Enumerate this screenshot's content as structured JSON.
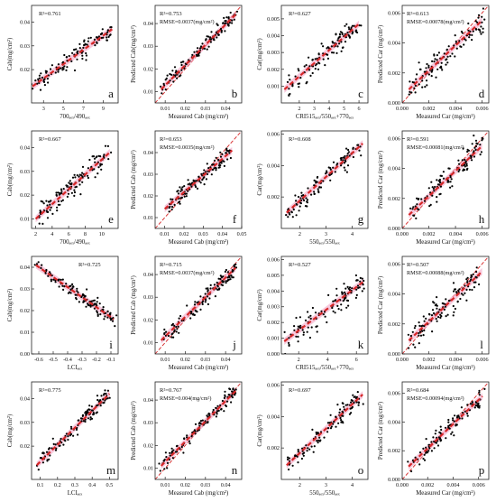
{
  "chart_data": [
    {
      "type": "scatter",
      "letter": "a",
      "xlabel": "700ₐₑₓ/490ₐₑₓ",
      "ylabel": "Cab(mg/cm²)",
      "stat1": "R²=0.761",
      "stat2": "",
      "xlim": [
        1.8,
        10.5
      ],
      "ylim": [
        0.006,
        0.047
      ],
      "xticks": [
        3,
        5,
        7,
        9
      ],
      "xticklabels": [
        "3",
        "5",
        "7",
        "9"
      ],
      "yticks": [
        0.02,
        0.03,
        0.04
      ],
      "yticklabels": [
        "0.02",
        "0.03",
        "0.04"
      ],
      "fit": [
        [
          1.9,
          0.013
        ],
        [
          9.9,
          0.037
        ]
      ],
      "one_to_one": false,
      "n": 120,
      "noise": 0.0035,
      "seed": 11
    },
    {
      "type": "scatter",
      "letter": "b",
      "xlabel": "Measured Cab (mg/cm²)",
      "ylabel": "Predicted Cab(mg/cm²)",
      "stat1": "R²=0.753",
      "stat2": "RMSE=0.0037(mg/cm²)",
      "xlim": [
        0.005,
        0.048
      ],
      "ylim": [
        0.005,
        0.048
      ],
      "xticks": [
        0.01,
        0.02,
        0.03,
        0.04
      ],
      "xticklabels": [
        "0.01",
        "0.02",
        "0.03",
        "0.04"
      ],
      "yticks": [
        0.01,
        0.02,
        0.03,
        0.04
      ],
      "yticklabels": [
        "0.01",
        "0.02",
        "0.03",
        "0.04"
      ],
      "fit": [
        [
          0.008,
          0.011
        ],
        [
          0.045,
          0.044
        ]
      ],
      "one_to_one": true,
      "n": 120,
      "noise": 0.0032,
      "seed": 12
    },
    {
      "type": "scatter",
      "letter": "c",
      "xlabel": "CRI515ₐₑₓ/550ₐₑₓ+770ₐₑₓ",
      "ylabel": "Car(mg/cm²)",
      "stat1": "R²=0.627",
      "stat2": "",
      "xlim": [
        0.8,
        6.6
      ],
      "ylim": [
        0,
        0.0058
      ],
      "xticks": [
        2,
        3,
        4,
        5,
        6
      ],
      "xticklabels": [
        "2",
        "3",
        "4",
        "5",
        "6"
      ],
      "yticks": [
        0.001,
        0.002,
        0.003,
        0.004,
        0.005
      ],
      "yticklabels": [
        "0.001",
        "0.002",
        "0.003",
        "0.004",
        "0.005"
      ],
      "fit": [
        [
          1,
          0.0008
        ],
        [
          6,
          0.0047
        ]
      ],
      "one_to_one": false,
      "n": 110,
      "noise": 0.00065,
      "seed": 13
    },
    {
      "type": "scatter",
      "letter": "d",
      "xlabel": "Measured Car (mg/cm²)",
      "ylabel": "Predicted Car (mg/cm²)",
      "stat1": "R²=0.613",
      "stat2": "RMSE=0.00078(mg/cm²)",
      "xlim": [
        0,
        0.0065
      ],
      "ylim": [
        0,
        0.0065
      ],
      "xticks": [
        0,
        0.002,
        0.004,
        0.006
      ],
      "xticklabels": [
        "0.000",
        "0.002",
        "0.004",
        "0.006"
      ],
      "yticks": [
        0,
        0.002,
        0.004,
        0.006
      ],
      "yticklabels": [
        "0.000",
        "0.002",
        "0.004",
        "0.006"
      ],
      "fit": [
        [
          0.0005,
          0.0009
        ],
        [
          0.006,
          0.0055
        ]
      ],
      "one_to_one": true,
      "n": 110,
      "noise": 0.0007,
      "seed": 14
    },
    {
      "type": "scatter",
      "letter": "e",
      "xlabel": "700ₐₑₓ/490ₐₑₓ",
      "ylabel": "Cab(mg/cm²)",
      "stat1": "R²=0.667",
      "stat2": "",
      "xlim": [
        1.5,
        12
      ],
      "ylim": [
        0.006,
        0.047
      ],
      "xticks": [
        2,
        4,
        6,
        8,
        10
      ],
      "xticklabels": [
        "2",
        "4",
        "6",
        "8",
        "10"
      ],
      "yticks": [
        0.01,
        0.02,
        0.03,
        0.04
      ],
      "yticklabels": [
        "0.01",
        "0.02",
        "0.03",
        "0.04"
      ],
      "fit": [
        [
          2,
          0.01
        ],
        [
          11,
          0.038
        ]
      ],
      "one_to_one": false,
      "n": 120,
      "noise": 0.0045,
      "seed": 21
    },
    {
      "type": "scatter",
      "letter": "f",
      "xlabel": "Measured Cab (mg/cm²)",
      "ylabel": "Predicted Cab (mg/cm²)",
      "stat1": "R²=0.653",
      "stat2": "RMSE=0.0035(mg/cm²)",
      "xlim": [
        0.005,
        0.05
      ],
      "ylim": [
        0.005,
        0.05
      ],
      "xticks": [
        0.01,
        0.02,
        0.03,
        0.04,
        0.05
      ],
      "xticklabels": [
        "0.01",
        "0.02",
        "0.03",
        "0.04",
        "0.05"
      ],
      "yticks": [
        0.01,
        0.02,
        0.03,
        0.04
      ],
      "yticklabels": [
        "0.01",
        "0.02",
        "0.03",
        "0.04"
      ],
      "fit": [
        [
          0.01,
          0.014
        ],
        [
          0.045,
          0.041
        ]
      ],
      "one_to_one": true,
      "n": 120,
      "noise": 0.0035,
      "seed": 22
    },
    {
      "type": "scatter",
      "letter": "g",
      "xlabel": "550ₐₑₓ/550ₐₑₓ",
      "ylabel": "Car(mg/cm²)",
      "stat1": "R²=0.608",
      "stat2": "",
      "xlim": [
        1.3,
        4.6
      ],
      "ylim": [
        0,
        0.0062
      ],
      "xticks": [
        2,
        3,
        4
      ],
      "xticklabels": [
        "2",
        "3",
        "4"
      ],
      "yticks": [
        0.002,
        0.004,
        0.006
      ],
      "yticklabels": [
        "0.002",
        "0.004",
        "0.006"
      ],
      "fit": [
        [
          1.5,
          0.001
        ],
        [
          4.4,
          0.0054
        ]
      ],
      "one_to_one": false,
      "n": 110,
      "noise": 0.0007,
      "seed": 23
    },
    {
      "type": "scatter",
      "letter": "h",
      "xlabel": "Measured Car (mg/cm²)",
      "ylabel": "Predicted Car (mg/cm²)",
      "stat1": "R²=0.591",
      "stat2": "RMSE=0.00081(mg/cm²)",
      "xlim": [
        0,
        0.0065
      ],
      "ylim": [
        0,
        0.0065
      ],
      "xticks": [
        0,
        0.002,
        0.004,
        0.006
      ],
      "xticklabels": [
        "0.000",
        "0.002",
        "0.004",
        "0.006"
      ],
      "yticks": [
        0,
        0.002,
        0.004,
        0.006
      ],
      "yticklabels": [
        "0.000",
        "0.002",
        "0.004",
        "0.006"
      ],
      "fit": [
        [
          0.0005,
          0.0009
        ],
        [
          0.006,
          0.0055
        ]
      ],
      "one_to_one": true,
      "n": 110,
      "noise": 0.00075,
      "seed": 24
    },
    {
      "type": "scatter",
      "letter": "i",
      "xlabel": "LCIₐₑₓ",
      "ylabel": "Cab(mg/cm²)",
      "stat1": "R²=0.725",
      "stat2": "",
      "xlim": [
        -0.65,
        -0.05
      ],
      "ylim": [
        0,
        0.045
      ],
      "xticks": [
        -0.6,
        -0.5,
        -0.4,
        -0.3,
        -0.2,
        -0.1
      ],
      "xticklabels": [
        "-0.6",
        "-0.5",
        "-0.4",
        "-0.3",
        "-0.2",
        "-0.1"
      ],
      "yticks": [
        0,
        0.01,
        0.02,
        0.03,
        0.04
      ],
      "yticklabels": [
        "0.00",
        "0.01",
        "0.02",
        "0.03",
        "0.04"
      ],
      "fit": [
        [
          -0.62,
          0.041
        ],
        [
          -0.08,
          0.016
        ]
      ],
      "one_to_one": false,
      "n": 120,
      "noise": 0.003,
      "seed": 31
    },
    {
      "type": "scatter",
      "letter": "j",
      "xlabel": "Measured Cab (mg/cm²)",
      "ylabel": "Predicted Cab (mg/cm²)",
      "stat1": "R²=0.715",
      "stat2": "RMSE=0.0037(mg/cm²)",
      "xlim": [
        0.005,
        0.048
      ],
      "ylim": [
        0.005,
        0.048
      ],
      "xticks": [
        0.01,
        0.02,
        0.03,
        0.04
      ],
      "xticklabels": [
        "0.01",
        "0.02",
        "0.03",
        "0.04"
      ],
      "yticks": [
        0.01,
        0.02,
        0.03,
        0.04
      ],
      "yticklabels": [
        "0.01",
        "0.02",
        "0.03",
        "0.04"
      ],
      "fit": [
        [
          0.008,
          0.011
        ],
        [
          0.045,
          0.043
        ]
      ],
      "one_to_one": true,
      "n": 120,
      "noise": 0.0033,
      "seed": 32
    },
    {
      "type": "scatter",
      "letter": "k",
      "xlabel": "CRI515ₐₑₓ/550ₐₑₓ+770ₐₑₓ",
      "ylabel": "Car(mg/cm²)",
      "stat1": "R²=0.527",
      "stat2": "",
      "xlim": [
        0.8,
        6.8
      ],
      "ylim": [
        0,
        0.0062
      ],
      "xticks": [
        2,
        4,
        6
      ],
      "xticklabels": [
        "2",
        "4",
        "6"
      ],
      "yticks": [
        0,
        0.001,
        0.002,
        0.003,
        0.004,
        0.005,
        0.006
      ],
      "yticklabels": [
        "0.000",
        "0.001",
        "0.002",
        "0.003",
        "0.004",
        "0.005",
        "0.006"
      ],
      "fit": [
        [
          1,
          0.0008
        ],
        [
          6.5,
          0.0046
        ]
      ],
      "one_to_one": false,
      "n": 110,
      "noise": 0.0008,
      "seed": 33
    },
    {
      "type": "scatter",
      "letter": "l",
      "xlabel": "Measured Car (mg/cm²)",
      "ylabel": "Predicted Car (mg/cm²)",
      "stat1": "R²=0.507",
      "stat2": "RMSE=0.00088(mg/cm²)",
      "xlim": [
        0,
        0.0065
      ],
      "ylim": [
        0,
        0.0065
      ],
      "xticks": [
        0,
        0.002,
        0.004,
        0.006
      ],
      "xticklabels": [
        "0.000",
        "0.002",
        "0.004",
        "0.006"
      ],
      "yticks": [
        0,
        0.002,
        0.004,
        0.006
      ],
      "yticklabels": [
        "0.000",
        "0.002",
        "0.004",
        "0.006"
      ],
      "fit": [
        [
          0.0005,
          0.0009
        ],
        [
          0.006,
          0.0055
        ]
      ],
      "one_to_one": true,
      "n": 110,
      "noise": 0.0008,
      "seed": 34
    },
    {
      "type": "scatter",
      "letter": "m",
      "xlabel": "LCIₐₑₓ",
      "ylabel": "Cab(mg/cm²)",
      "stat1": "R²=0.775",
      "stat2": "",
      "xlim": [
        0.05,
        0.55
      ],
      "ylim": [
        0.006,
        0.047
      ],
      "xticks": [
        0.1,
        0.2,
        0.3,
        0.4,
        0.5
      ],
      "xticklabels": [
        "0.1",
        "0.2",
        "0.3",
        "0.4",
        "0.5"
      ],
      "yticks": [
        0.02,
        0.03,
        0.04
      ],
      "yticklabels": [
        "0.02",
        "0.03",
        "0.04"
      ],
      "fit": [
        [
          0.08,
          0.012
        ],
        [
          0.5,
          0.042
        ]
      ],
      "one_to_one": false,
      "n": 120,
      "noise": 0.0032,
      "seed": 41
    },
    {
      "type": "scatter",
      "letter": "n",
      "xlabel": "Measured Cab (mg/cm²)",
      "ylabel": "Predicted Cab (mg/cm²)",
      "stat1": "R²=0.767",
      "stat2": "RMSE=0.004(mg/cm²)",
      "xlim": [
        0.005,
        0.048
      ],
      "ylim": [
        0.005,
        0.048
      ],
      "xticks": [
        0.01,
        0.02,
        0.03,
        0.04
      ],
      "xticklabels": [
        "0.01",
        "0.02",
        "0.03",
        "0.04"
      ],
      "yticks": [
        0.01,
        0.02,
        0.03,
        0.04
      ],
      "yticklabels": [
        "0.01",
        "0.02",
        "0.03",
        "0.04"
      ],
      "fit": [
        [
          0.008,
          0.011
        ],
        [
          0.045,
          0.044
        ]
      ],
      "one_to_one": true,
      "n": 120,
      "noise": 0.0032,
      "seed": 42
    },
    {
      "type": "scatter",
      "letter": "o",
      "xlabel": "550ₐₑₓ/550ₐₑₓ",
      "ylabel": "Car(mg/cm²)",
      "stat1": "R²=0.697",
      "stat2": "",
      "xlim": [
        1.3,
        4.6
      ],
      "ylim": [
        0,
        0.0062
      ],
      "xticks": [
        2,
        3,
        4
      ],
      "xticklabels": [
        "2",
        "3",
        "4"
      ],
      "yticks": [
        0.002,
        0.004,
        0.006
      ],
      "yticklabels": [
        "0.002",
        "0.004",
        "0.006"
      ],
      "fit": [
        [
          1.5,
          0.0009
        ],
        [
          4.4,
          0.0054
        ]
      ],
      "one_to_one": false,
      "n": 110,
      "noise": 0.0006,
      "seed": 43
    },
    {
      "type": "scatter",
      "letter": "p",
      "xlabel": "Measured Car (mg/cm²)",
      "ylabel": "Predicted Car (mg/cm²)",
      "stat1": "R²=0.684",
      "stat2": "RMSE=0.00094(mg/cm²)",
      "xlim": [
        0,
        0.0068
      ],
      "ylim": [
        0,
        0.0068
      ],
      "xticks": [
        0,
        0.002,
        0.004,
        0.006
      ],
      "xticklabels": [
        "0.000",
        "0.002",
        "0.004",
        "0.006"
      ],
      "yticks": [
        0,
        0.002,
        0.004,
        0.006
      ],
      "yticklabels": [
        "0.000",
        "0.002",
        "0.004",
        "0.006"
      ],
      "fit": [
        [
          0.0005,
          0.0009
        ],
        [
          0.0063,
          0.0058
        ]
      ],
      "one_to_one": true,
      "n": 110,
      "noise": 0.0007,
      "seed": 44
    }
  ],
  "style": {
    "point_color": "#000000",
    "fit_color": "#d62728",
    "fit_band_color": "#f2a6c8",
    "one_to_one_color": "#d62728",
    "axis_color": "#222222"
  }
}
